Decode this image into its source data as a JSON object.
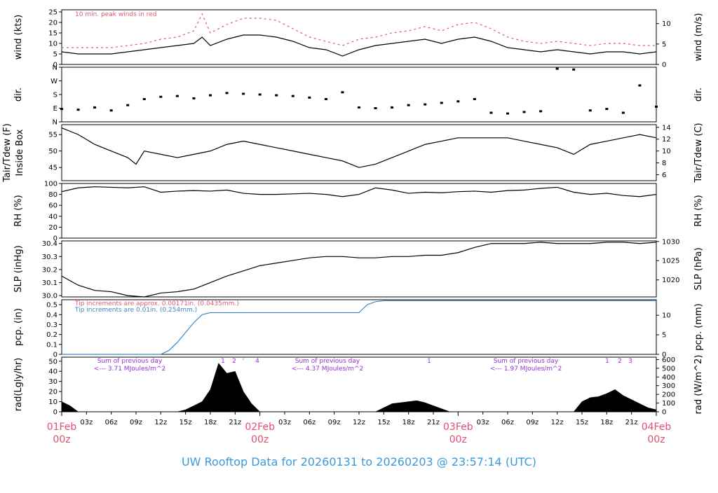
{
  "title": "UW Rooftop Data for 20260131  to  20260203 @ 23:57:14  (UTC)",
  "colors": {
    "date": "#e0506e",
    "title": "#3a9ad9",
    "red": "#e05a6e",
    "blue": "#3a86c8",
    "purple": "#9a2fd6",
    "trace": "#000000"
  },
  "x_axis": {
    "hours_min": 0,
    "hours_max": 72,
    "hour_ticks": [
      "03z",
      "06z",
      "09z",
      "12z",
      "15z",
      "18z",
      "21z",
      "03z",
      "06z",
      "09z",
      "12z",
      "15z",
      "18z",
      "21z",
      "03z",
      "06z",
      "09z",
      "12z",
      "15z",
      "18z",
      "21z"
    ],
    "date_labels": [
      {
        "day": "01Feb",
        "hour": "00z"
      },
      {
        "day": "02Feb",
        "hour": "00z"
      },
      {
        "day": "03Feb",
        "hour": "00z"
      },
      {
        "day": "04Feb",
        "hour": "00z"
      }
    ]
  },
  "chart_data": [
    {
      "type": "line",
      "id": "wind",
      "ylabel": "wind (kts)",
      "ylabel_right": "wind (m/s)",
      "ylim": [
        0,
        26
      ],
      "yticks": [
        "0",
        "5",
        "10",
        "15",
        "20",
        "25"
      ],
      "yticks_right": [
        "0",
        "5",
        "10"
      ],
      "annotation": "10 min. peak winds in red",
      "series": [
        {
          "name": "wind",
          "x": [
            0,
            2,
            4,
            6,
            8,
            10,
            12,
            14,
            16,
            17,
            18,
            20,
            22,
            24,
            26,
            28,
            30,
            32,
            34,
            36,
            38,
            40,
            42,
            44,
            46,
            48,
            50,
            52,
            54,
            56,
            58,
            60,
            62,
            64,
            66,
            68,
            70,
            72
          ],
          "y": [
            6,
            5,
            5,
            5,
            6,
            7,
            8,
            9,
            10,
            13,
            9,
            12,
            14,
            14,
            13,
            11,
            8,
            7,
            4,
            7,
            9,
            10,
            11,
            12,
            10,
            12,
            13,
            11,
            8,
            7,
            6,
            7,
            6,
            5,
            6,
            6,
            5,
            6
          ]
        },
        {
          "name": "10 min. peak winds",
          "x": [
            0,
            2,
            4,
            6,
            8,
            10,
            12,
            14,
            16,
            17,
            18,
            20,
            22,
            24,
            26,
            28,
            30,
            32,
            34,
            36,
            38,
            40,
            42,
            44,
            46,
            48,
            50,
            52,
            54,
            56,
            58,
            60,
            62,
            64,
            66,
            68,
            70,
            72
          ],
          "y": [
            8,
            8,
            8,
            8,
            9,
            10,
            12,
            13,
            16,
            24,
            15,
            19,
            22,
            22,
            21,
            17,
            13,
            11,
            9,
            12,
            13,
            15,
            16,
            18,
            16,
            19,
            20,
            17,
            13,
            11,
            10,
            11,
            10,
            9,
            10,
            10,
            9,
            9
          ]
        }
      ]
    },
    {
      "type": "scatter",
      "id": "dir",
      "ylabel": "dir.",
      "ylabel_right": "dir.",
      "ylim": [
        0,
        360
      ],
      "yticks": [
        "N",
        "E",
        "S",
        "W",
        "N"
      ],
      "series": [
        {
          "name": "dir",
          "x": [
            0,
            2,
            4,
            6,
            8,
            10,
            12,
            14,
            16,
            18,
            20,
            22,
            24,
            26,
            28,
            30,
            32,
            34,
            36,
            38,
            40,
            42,
            44,
            46,
            48,
            50,
            52,
            54,
            56,
            58,
            60,
            62,
            64,
            66,
            68,
            70,
            72
          ],
          "y": [
            85,
            80,
            95,
            75,
            110,
            150,
            165,
            170,
            155,
            175,
            190,
            185,
            180,
            175,
            170,
            160,
            150,
            195,
            95,
            90,
            95,
            110,
            115,
            125,
            135,
            150,
            60,
            55,
            65,
            70,
            350,
            345,
            75,
            85,
            60,
            240,
            100
          ]
        }
      ]
    },
    {
      "type": "line",
      "id": "temp",
      "ylabel": "Tair/Tdew (F)",
      "ylabel2": "Inside Box",
      "ylabel_right": "Tair/Tdew (C)",
      "ylim": [
        41,
        58
      ],
      "yticks": [
        "45",
        "50",
        "55"
      ],
      "yticks_right": [
        "6",
        "8",
        "10",
        "12",
        "14"
      ],
      "series": [
        {
          "name": "Tair",
          "x": [
            0,
            2,
            4,
            6,
            8,
            9,
            10,
            12,
            14,
            16,
            18,
            20,
            22,
            24,
            26,
            28,
            30,
            32,
            34,
            36,
            38,
            40,
            42,
            44,
            46,
            48,
            50,
            52,
            54,
            56,
            58,
            60,
            62,
            64,
            66,
            68,
            70,
            72
          ],
          "y": [
            57,
            55,
            52,
            50,
            48,
            46,
            50,
            49,
            48,
            49,
            50,
            52,
            53,
            52,
            51,
            50,
            49,
            48,
            47,
            45,
            46,
            48,
            50,
            52,
            53,
            54,
            54,
            54,
            54,
            53,
            52,
            51,
            49,
            52,
            53,
            54,
            55,
            54
          ]
        }
      ]
    },
    {
      "type": "line",
      "id": "rh",
      "ylabel": "RH (%)",
      "ylabel_right": "RH (%)",
      "ylim": [
        0,
        100
      ],
      "yticks": [
        "0",
        "20",
        "40",
        "60",
        "80",
        "100"
      ],
      "series": [
        {
          "name": "RH",
          "x": [
            0,
            2,
            4,
            6,
            8,
            10,
            12,
            14,
            16,
            18,
            20,
            22,
            24,
            26,
            28,
            30,
            32,
            34,
            36,
            38,
            40,
            42,
            44,
            46,
            48,
            50,
            52,
            54,
            56,
            58,
            60,
            62,
            64,
            66,
            68,
            70,
            72
          ],
          "y": [
            85,
            92,
            94,
            93,
            92,
            94,
            84,
            86,
            87,
            86,
            88,
            82,
            80,
            80,
            81,
            82,
            80,
            76,
            80,
            92,
            88,
            82,
            84,
            83,
            85,
            86,
            84,
            87,
            88,
            91,
            93,
            84,
            80,
            82,
            78,
            76,
            80
          ]
        }
      ]
    },
    {
      "type": "line",
      "id": "slp",
      "ylabel": "SLP (inHg)",
      "ylabel_right": "SLP (hPa)",
      "ylim": [
        29.99,
        30.42
      ],
      "yticks": [
        "30.0",
        "30.1",
        "30.2",
        "30.3",
        "30.4"
      ],
      "yticks_right_hpa": [
        1020,
        1025,
        1030
      ],
      "yticks_right": [
        "1020",
        "1025",
        "1030"
      ],
      "series": [
        {
          "name": "SLP",
          "x": [
            0,
            2,
            4,
            6,
            8,
            10,
            12,
            14,
            16,
            18,
            20,
            22,
            24,
            26,
            28,
            30,
            32,
            34,
            36,
            38,
            40,
            42,
            44,
            46,
            48,
            50,
            52,
            54,
            56,
            58,
            60,
            62,
            64,
            66,
            68,
            70,
            72
          ],
          "y": [
            30.15,
            30.08,
            30.04,
            30.03,
            30.0,
            29.99,
            30.02,
            30.03,
            30.05,
            30.1,
            30.15,
            30.19,
            30.23,
            30.25,
            30.27,
            30.29,
            30.3,
            30.3,
            30.29,
            30.29,
            30.3,
            30.3,
            30.31,
            30.31,
            30.33,
            30.37,
            30.4,
            30.4,
            30.4,
            30.41,
            30.4,
            30.4,
            30.4,
            30.41,
            30.41,
            30.4,
            30.41
          ]
        }
      ]
    },
    {
      "type": "line",
      "id": "pcp",
      "ylabel": "pcp. (in)",
      "ylabel_right": "pcp. (mm)",
      "ylim": [
        0,
        0.55
      ],
      "yticks": [
        "0",
        "0.1",
        "0.2",
        "0.3",
        "0.4",
        "0.5"
      ],
      "yticks_right": [
        "0",
        "5",
        "10"
      ],
      "annotations": [
        "Tip increments are approx. 0.00171in. (0.0435mm.)",
        "Tip increments are 0.01in. (0.254mm.)"
      ],
      "series": [
        {
          "name": "pcp",
          "x": [
            0,
            12,
            13,
            14,
            15,
            16,
            17,
            18,
            24,
            30,
            36,
            37,
            38,
            39,
            72
          ],
          "y": [
            0,
            0,
            0.04,
            0.12,
            0.22,
            0.32,
            0.4,
            0.42,
            0.42,
            0.42,
            0.42,
            0.5,
            0.53,
            0.54,
            0.54
          ]
        }
      ]
    },
    {
      "type": "area",
      "id": "rad",
      "ylabel": "rad(Lgly/hr)",
      "ylabel_right": "rad (W/m^2)",
      "ylim": [
        0,
        54
      ],
      "yticks": [
        "0",
        "10",
        "20",
        "30",
        "40",
        "50"
      ],
      "yticks_right": [
        "0",
        "100",
        "200",
        "300",
        "400",
        "500",
        "600"
      ],
      "annotations": [
        {
          "line1": "Sum of previous day",
          "line2": "<--- 3.71 MJoules/m^2"
        },
        {
          "line1": "Sum of previous day",
          "line2": "<--- 4.37 MJoules/m^2"
        },
        {
          "line1": "Sum of previous day",
          "line2": "<--- 1.97 MJoules/m^2"
        }
      ],
      "markers": [
        "1",
        "2",
        "'",
        "4",
        "1",
        "1",
        "2",
        "3"
      ],
      "series": [
        {
          "name": "rad",
          "x": [
            0,
            1,
            2,
            14,
            15,
            16,
            17,
            18,
            19,
            20,
            21,
            22,
            23,
            24,
            38,
            39,
            40,
            41,
            42,
            43,
            44,
            45,
            46,
            47,
            48,
            62,
            63,
            64,
            65,
            66,
            67,
            68,
            69,
            70,
            71,
            72
          ],
          "y": [
            10,
            6,
            0,
            0,
            2,
            6,
            10,
            22,
            48,
            38,
            40,
            20,
            8,
            0,
            0,
            4,
            8,
            9,
            10,
            11,
            9,
            6,
            3,
            0,
            0,
            0,
            10,
            14,
            15,
            18,
            22,
            16,
            12,
            8,
            4,
            2
          ]
        }
      ]
    }
  ]
}
